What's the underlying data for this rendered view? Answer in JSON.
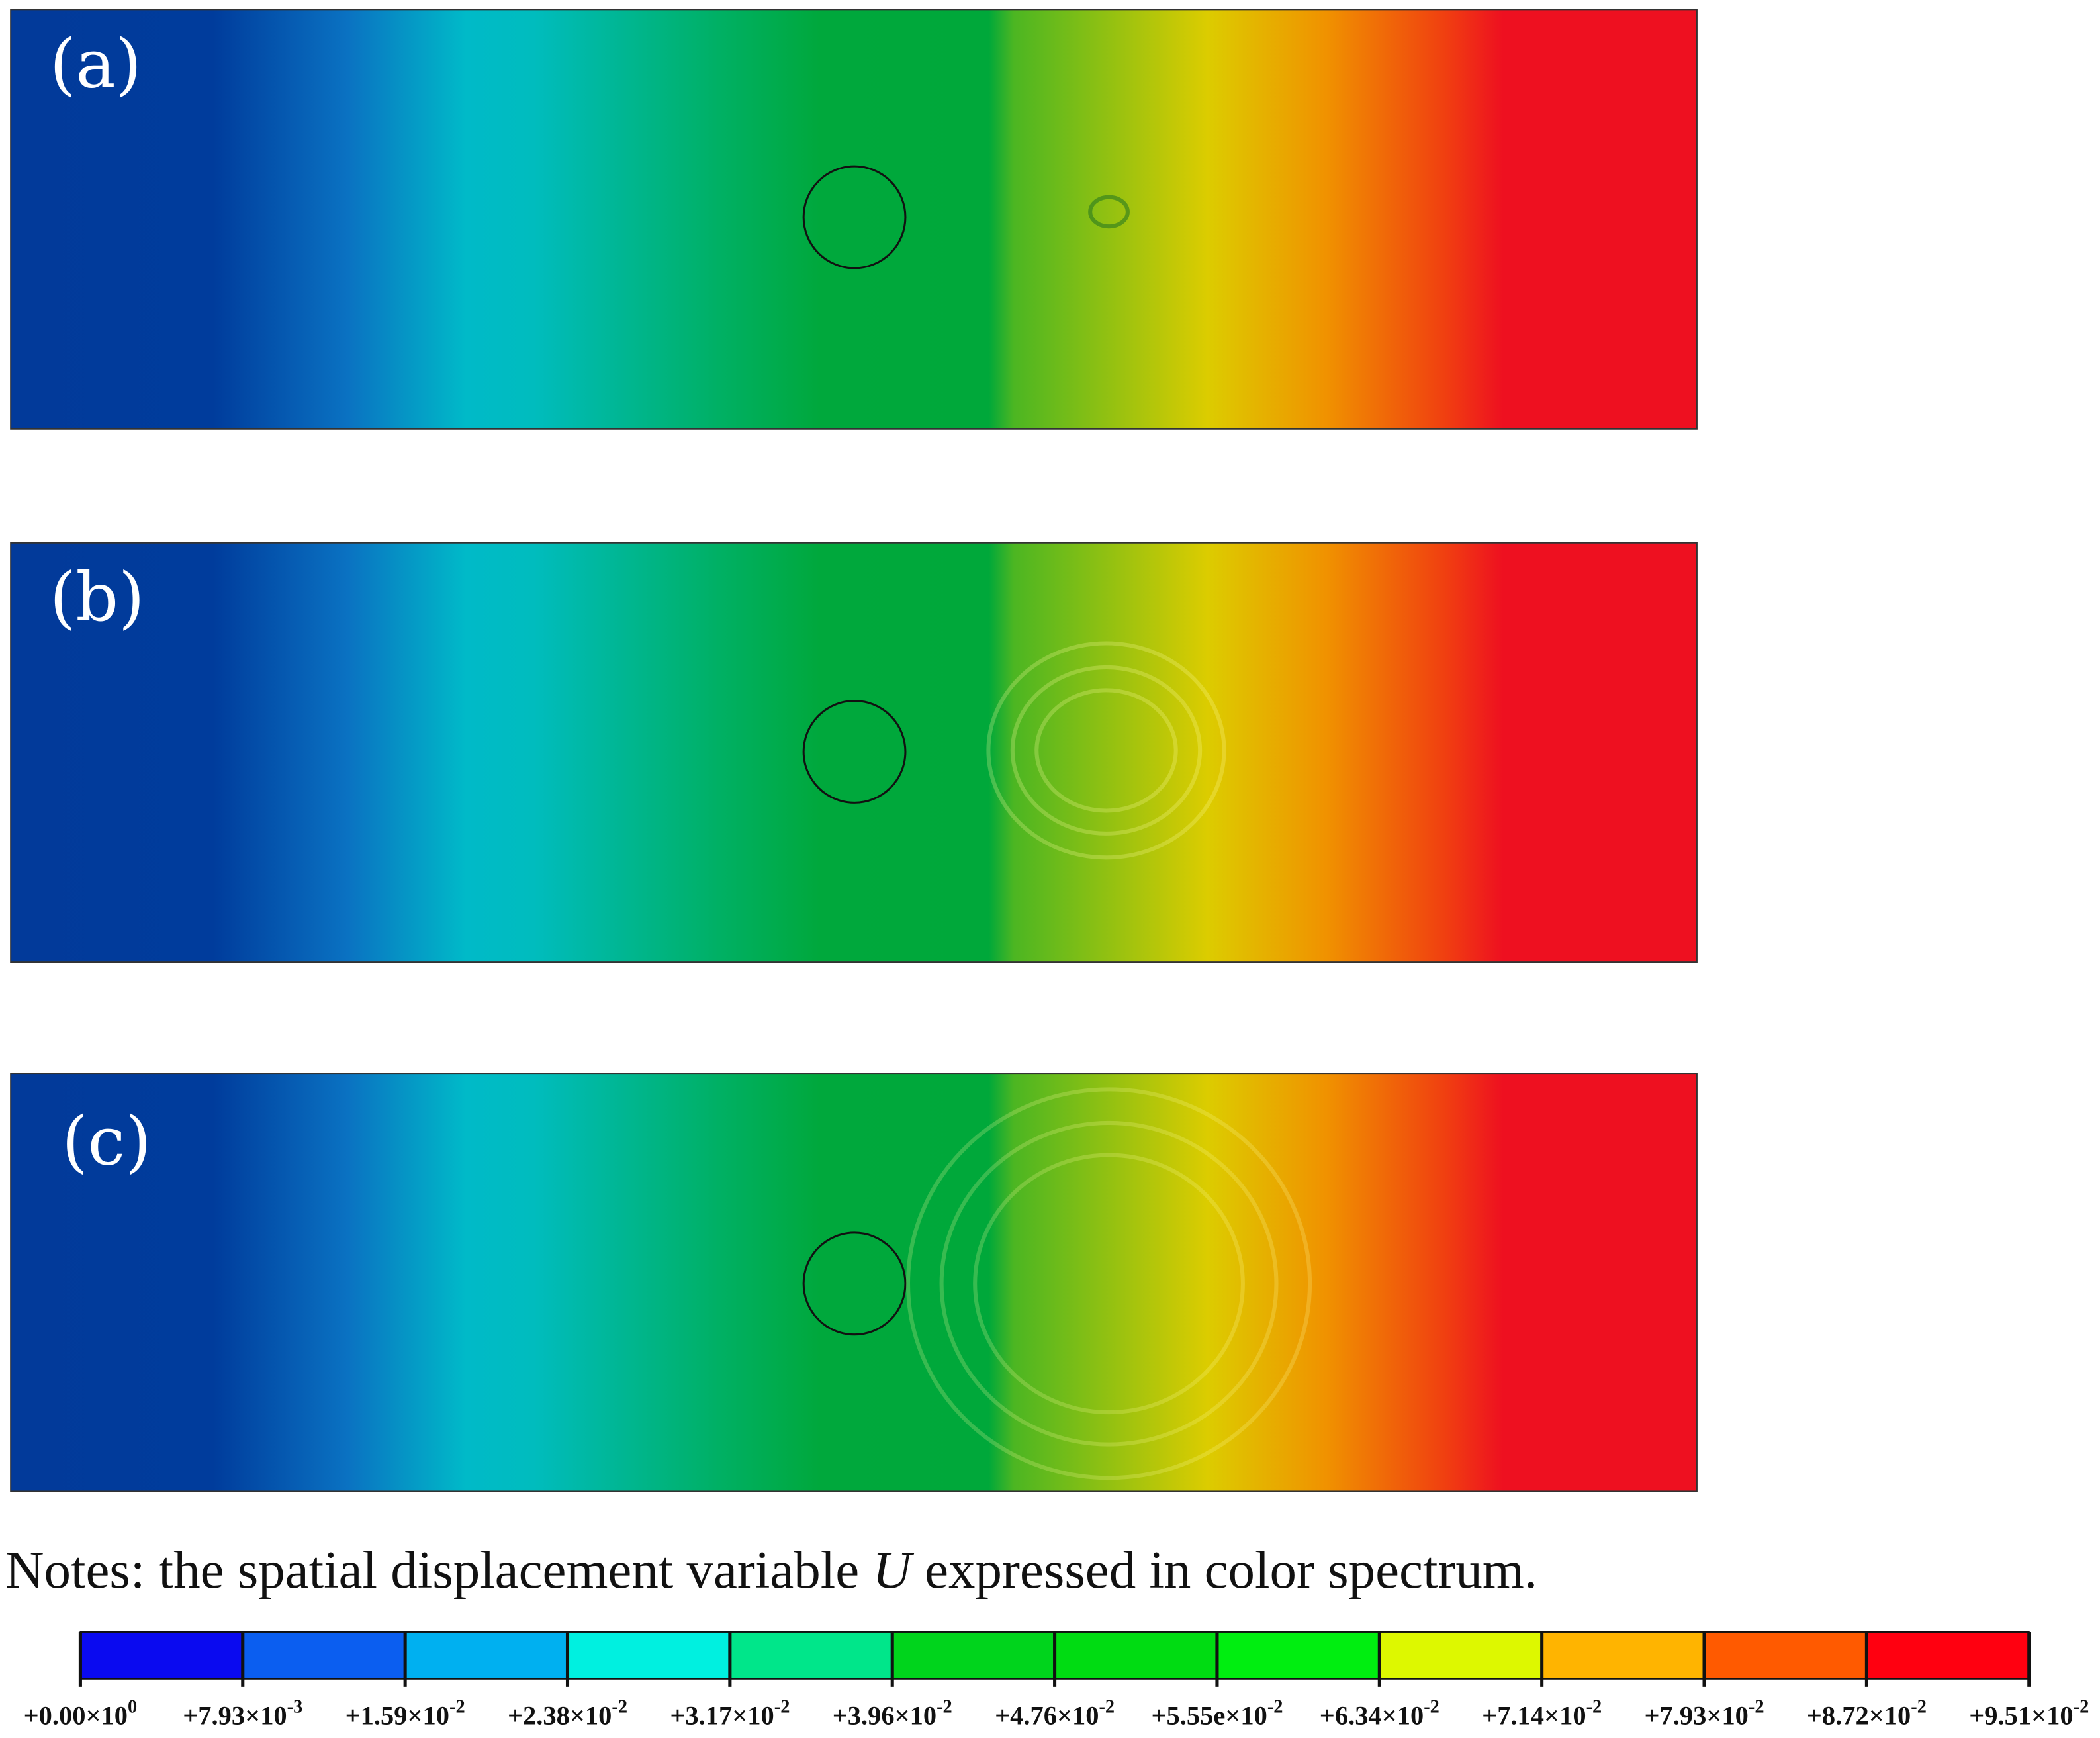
{
  "panels": [
    {
      "label": "(a)"
    },
    {
      "label": "(b)"
    },
    {
      "label": "(c)"
    }
  ],
  "note": {
    "before": "Notes: the spatial displacement variable ",
    "variable": "U",
    "after": " expressed in color spectrum."
  },
  "colorbar": {
    "colors": [
      "#0a0af0",
      "#0b5ef0",
      "#00b0f0",
      "#00f0e0",
      "#00e68a",
      "#00d41c",
      "#00dc12",
      "#00ee10",
      "#ddf800",
      "#ffb400",
      "#ff5a00",
      "#ff0010"
    ],
    "ticks": [
      {
        "mantissa": "+0.00×10",
        "exponent": "0"
      },
      {
        "mantissa": "+7.93×10",
        "exponent": "-3"
      },
      {
        "mantissa": "+1.59×10",
        "exponent": "-2"
      },
      {
        "mantissa": "+2.38×10",
        "exponent": "-2"
      },
      {
        "mantissa": "+3.17×10",
        "exponent": "-2"
      },
      {
        "mantissa": "+3.96×10",
        "exponent": "-2"
      },
      {
        "mantissa": "+4.76×10",
        "exponent": "-2"
      },
      {
        "mantissa": "+5.55e×10",
        "exponent": "-2"
      },
      {
        "mantissa": "+6.34×10",
        "exponent": "-2"
      },
      {
        "mantissa": "+7.14×10",
        "exponent": "-2"
      },
      {
        "mantissa": "+7.93×10",
        "exponent": "-2"
      },
      {
        "mantissa": "+8.72×10",
        "exponent": "-2"
      },
      {
        "mantissa": "+9.51×10",
        "exponent": "-2"
      }
    ]
  }
}
